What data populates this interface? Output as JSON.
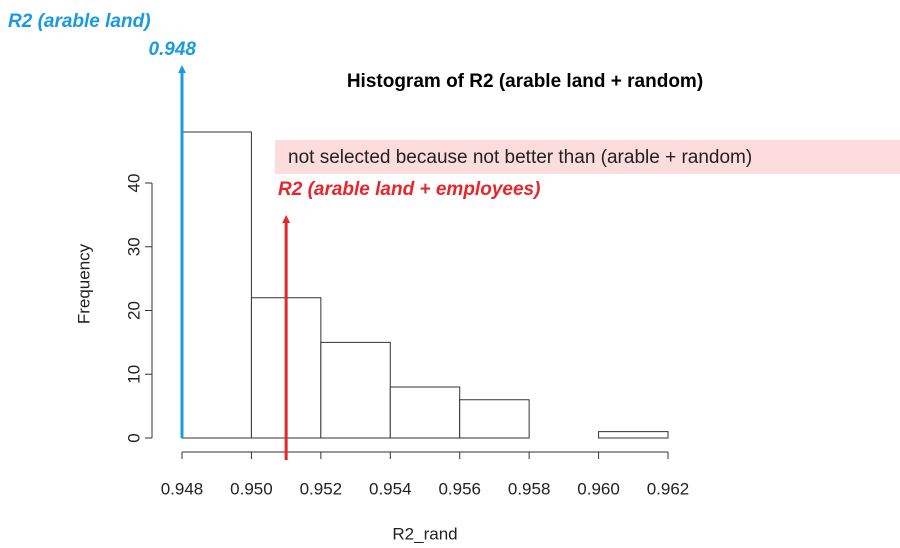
{
  "chart_data": {
    "type": "histogram",
    "title": "Histogram of R2 (arable land + random)",
    "xlabel": "R2_rand",
    "ylabel": "Frequency",
    "bins": [
      0.948,
      0.95,
      0.952,
      0.954,
      0.956,
      0.958,
      0.96,
      0.962
    ],
    "values": [
      48,
      22,
      15,
      8,
      6,
      0,
      1
    ],
    "color": "#ffffff",
    "edge_color": "#333333",
    "xlim": [
      0.948,
      0.962
    ],
    "xticks": [
      0.948,
      {
        "value": 0.95,
        "label": "0.950"
      },
      0.952,
      0.954,
      0.956,
      0.958,
      {
        "value": 0.96,
        "label": "0.960"
      },
      0.962
    ],
    "ylim": [
      0,
      48
    ],
    "yticks": [
      0,
      10,
      20,
      30,
      40
    ],
    "annotations": [
      {
        "text": "R2 (arable land)",
        "value": 0.948,
        "value_label": "0.948",
        "color": "#1a9be0"
      },
      {
        "text": "R2 (arable land + employees)",
        "value": 0.951,
        "color": "#e8262a",
        "note": "not selected because not better than (arable + random)",
        "note_color": "#fcdcdc"
      }
    ]
  }
}
